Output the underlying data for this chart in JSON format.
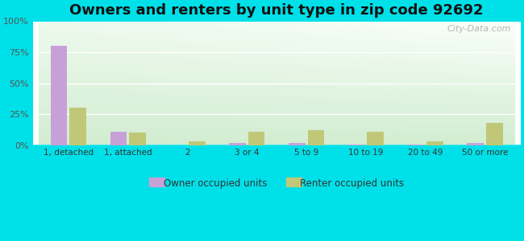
{
  "title": "Owners and renters by unit type in zip code 92692",
  "categories": [
    "1, detached",
    "1, attached",
    "2",
    "3 or 4",
    "5 to 9",
    "10 to 19",
    "20 to 49",
    "50 or more"
  ],
  "owner_values": [
    80,
    11,
    0,
    2,
    1.5,
    0.5,
    0.3,
    1.5
  ],
  "renter_values": [
    30,
    10,
    3,
    11,
    12,
    11,
    3,
    18
  ],
  "owner_color": "#c8a0d8",
  "renter_color": "#c0c878",
  "background_outer": "#00e0e8",
  "title_fontsize": 13,
  "title_color": "#111111",
  "ylim": [
    0,
    100
  ],
  "yticks": [
    0,
    25,
    50,
    75,
    100
  ],
  "ytick_labels": [
    "0%",
    "25%",
    "50%",
    "75%",
    "100%"
  ],
  "watermark": "City-Data.com",
  "legend_owner": "Owner occupied units",
  "legend_renter": "Renter occupied units",
  "bar_width": 0.28,
  "grid_color": "#dddddd",
  "tick_color": "#555555",
  "label_color": "#333333"
}
